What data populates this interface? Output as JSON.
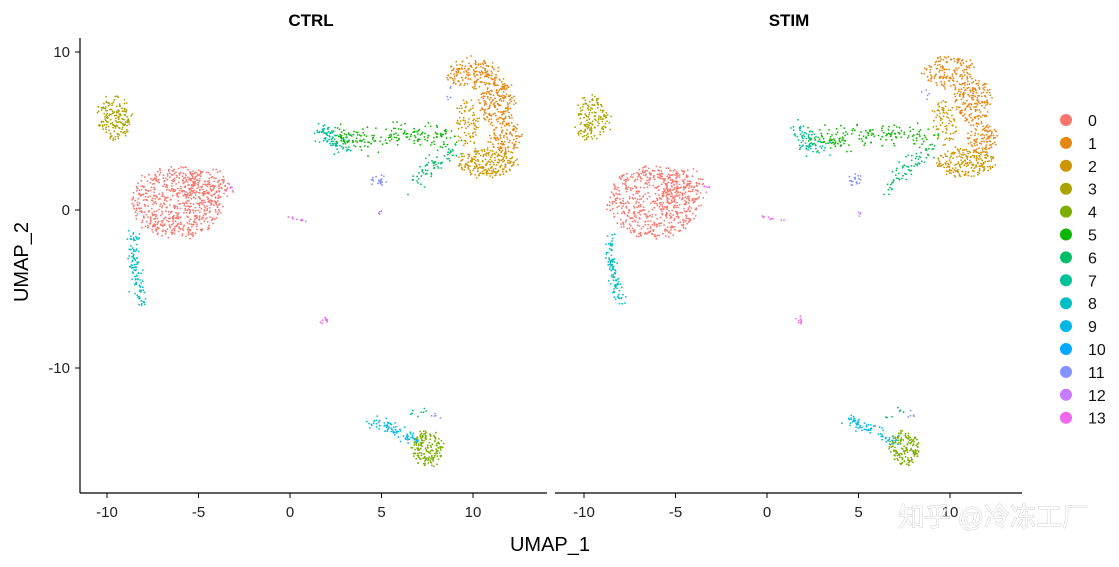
{
  "chart_data": {
    "type": "scatter",
    "xlabel": "UMAP_1",
    "ylabel": "UMAP_2",
    "xlim": [
      -11.5,
      13.5
    ],
    "ylim": [
      -18,
      11
    ],
    "x_ticks": [
      -10,
      -5,
      0,
      5,
      10
    ],
    "x_tick_labels": [
      "-10",
      "-5",
      "0",
      "5",
      "10"
    ],
    "y_ticks": [
      10,
      0,
      -10
    ],
    "y_tick_labels": [
      "10",
      "0",
      "-10"
    ],
    "panels": [
      {
        "title": "CTRL"
      },
      {
        "title": "STIM"
      }
    ],
    "legend": {
      "position": "right",
      "entries": [
        {
          "label": "0",
          "color": "#F8766D"
        },
        {
          "label": "1",
          "color": "#E68613"
        },
        {
          "label": "2",
          "color": "#CD9600"
        },
        {
          "label": "3",
          "color": "#ABA300"
        },
        {
          "label": "4",
          "color": "#7CAE00"
        },
        {
          "label": "5",
          "color": "#0CB702"
        },
        {
          "label": "6",
          "color": "#00BE67"
        },
        {
          "label": "7",
          "color": "#00C19A"
        },
        {
          "label": "8",
          "color": "#00BFC4"
        },
        {
          "label": "9",
          "color": "#00B8E7"
        },
        {
          "label": "10",
          "color": "#00A9FF"
        },
        {
          "label": "11",
          "color": "#8494FF"
        },
        {
          "label": "12",
          "color": "#C77CFF"
        },
        {
          "label": "13",
          "color": "#ED68ED"
        }
      ]
    },
    "clusters": [
      {
        "id": "0",
        "color": "#F8766D",
        "regions": [
          {
            "type": "blob",
            "cx": -6.2,
            "cy": 0.5,
            "rx": 2.5,
            "ry": 2.3,
            "n": 650
          },
          {
            "type": "blob",
            "cx": -4.5,
            "cy": 1.5,
            "rx": 1.2,
            "ry": 1.2,
            "n": 120
          }
        ]
      },
      {
        "id": "1",
        "color": "#E68613",
        "regions": [
          {
            "type": "blob",
            "cx": 10.0,
            "cy": 8.7,
            "rx": 1.4,
            "ry": 1.0,
            "n": 170
          },
          {
            "type": "blob",
            "cx": 11.3,
            "cy": 6.8,
            "rx": 1.0,
            "ry": 1.4,
            "n": 190
          },
          {
            "type": "blob",
            "cx": 11.8,
            "cy": 4.6,
            "rx": 0.8,
            "ry": 1.0,
            "n": 110
          }
        ]
      },
      {
        "id": "2",
        "color": "#CD9600",
        "regions": [
          {
            "type": "blob",
            "cx": 10.8,
            "cy": 3.0,
            "rx": 1.6,
            "ry": 0.9,
            "n": 230
          },
          {
            "type": "blob",
            "cx": 9.7,
            "cy": 5.5,
            "rx": 0.6,
            "ry": 1.6,
            "n": 80
          }
        ]
      },
      {
        "id": "3",
        "color": "#ABA300",
        "regions": [
          {
            "type": "blob",
            "cx": -9.6,
            "cy": 5.8,
            "rx": 0.9,
            "ry": 1.4,
            "n": 170
          }
        ]
      },
      {
        "id": "4",
        "color": "#7CAE00",
        "regions": [
          {
            "type": "blob",
            "cx": 7.5,
            "cy": -15.1,
            "rx": 0.8,
            "ry": 1.1,
            "n": 170
          }
        ]
      },
      {
        "id": "5",
        "color": "#0CB702",
        "regions": [
          {
            "type": "path",
            "pts": [
              [
                2.3,
                4.5
              ],
              [
                4.0,
                4.5
              ],
              [
                6.0,
                4.8
              ],
              [
                8.0,
                4.8
              ],
              [
                8.8,
                4.4
              ]
            ],
            "spread": 0.35,
            "n": 190
          }
        ]
      },
      {
        "id": "6",
        "color": "#00BE67",
        "regions": [
          {
            "type": "path",
            "pts": [
              [
                6.8,
                1.5
              ],
              [
                7.5,
                2.5
              ],
              [
                8.3,
                3.3
              ],
              [
                8.8,
                4.0
              ]
            ],
            "spread": 0.3,
            "n": 70
          },
          {
            "type": "path",
            "pts": [
              [
                6.5,
                -13.0
              ],
              [
                7.5,
                -12.8
              ]
            ],
            "spread": 0.15,
            "n": 8
          }
        ]
      },
      {
        "id": "7",
        "color": "#00C19A",
        "regions": [
          {
            "type": "path",
            "pts": [
              [
                1.8,
                5.2
              ],
              [
                2.4,
                4.2
              ],
              [
                3.2,
                3.8
              ]
            ],
            "spread": 0.3,
            "n": 80
          }
        ]
      },
      {
        "id": "8",
        "color": "#00BFC4",
        "regions": [
          {
            "type": "path",
            "pts": [
              [
                -8.5,
                -1.5
              ],
              [
                -8.6,
                -2.8
              ],
              [
                -8.3,
                -4.5
              ],
              [
                -8.0,
                -6.0
              ]
            ],
            "spread": 0.15,
            "n": 110
          }
        ]
      },
      {
        "id": "9",
        "color": "#00B8E7",
        "regions": [
          {
            "type": "path",
            "pts": [
              [
                4.5,
                -13.3
              ],
              [
                5.6,
                -13.8
              ],
              [
                6.6,
                -14.5
              ],
              [
                7.1,
                -14.6
              ]
            ],
            "spread": 0.2,
            "n": 80
          }
        ]
      },
      {
        "id": "10",
        "color": "#00A9FF",
        "regions": []
      },
      {
        "id": "11",
        "color": "#8494FF",
        "regions": [
          {
            "type": "blob",
            "cx": 4.8,
            "cy": 1.9,
            "rx": 0.4,
            "ry": 0.3,
            "n": 22
          },
          {
            "type": "path",
            "pts": [
              [
                8.7,
                7.7
              ],
              [
                8.8,
                7.0
              ]
            ],
            "spread": 0.1,
            "n": 5
          },
          {
            "type": "path",
            "pts": [
              [
                7.9,
                -12.8
              ],
              [
                8.0,
                -13.2
              ]
            ],
            "spread": 0.1,
            "n": 5
          }
        ]
      },
      {
        "id": "12",
        "color": "#C77CFF",
        "regions": [
          {
            "type": "blob",
            "cx": 5.0,
            "cy": -0.2,
            "rx": 0.1,
            "ry": 0.1,
            "n": 4
          }
        ]
      },
      {
        "id": "13",
        "color": "#ED68ED",
        "regions": [
          {
            "type": "path",
            "pts": [
              [
                -0.3,
                -0.4
              ],
              [
                0.9,
                -0.7
              ]
            ],
            "spread": 0.05,
            "n": 10
          },
          {
            "type": "blob",
            "cx": 1.8,
            "cy": -7.0,
            "rx": 0.2,
            "ry": 0.15,
            "n": 10
          },
          {
            "type": "blob",
            "cx": -3.2,
            "cy": 1.4,
            "rx": 0.15,
            "ry": 0.3,
            "n": 7
          }
        ]
      }
    ]
  },
  "watermark": {
    "text": "知乎 @冷冻工厂"
  }
}
